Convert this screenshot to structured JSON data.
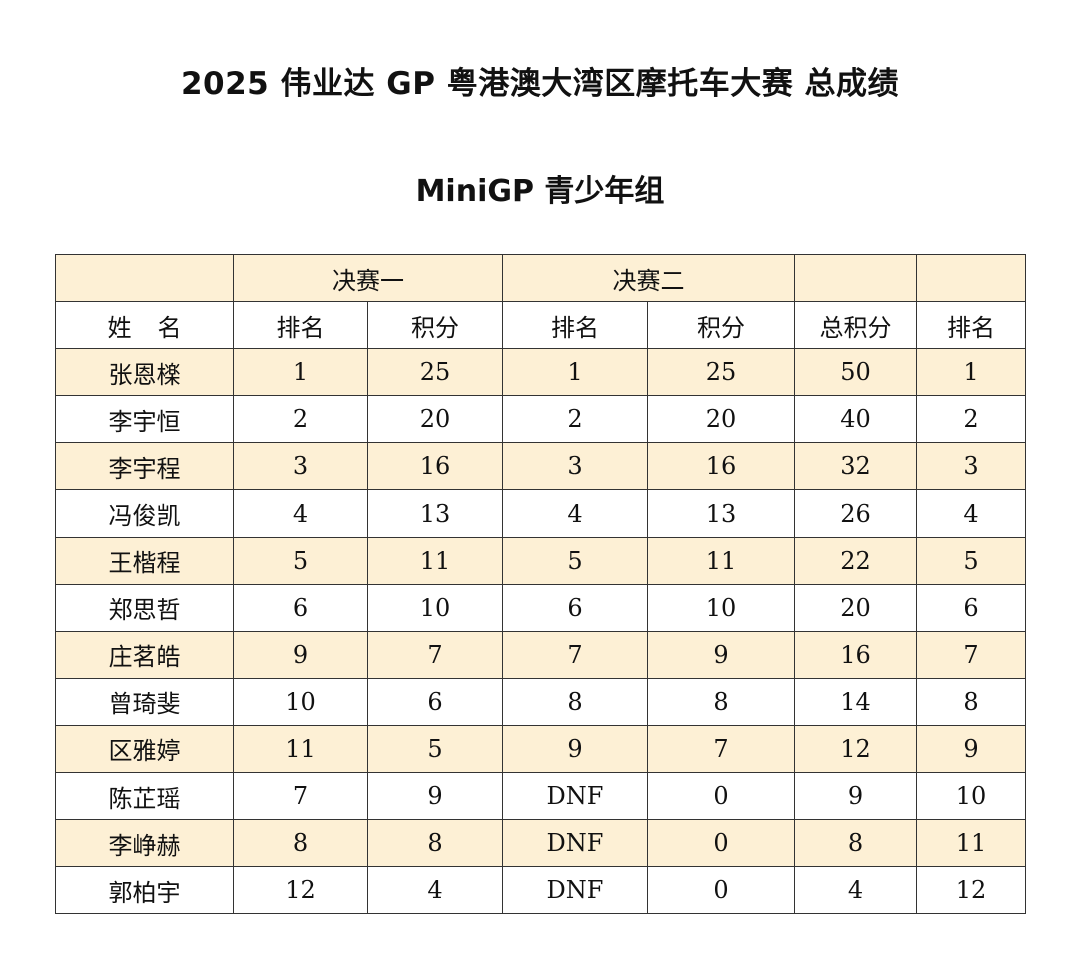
{
  "title": "2025  伟业达 GP 粤港澳大湾区摩托车大赛  总成绩",
  "subtitle": "MiniGP  青少年组",
  "colors": {
    "header_fill": "#fdf0d5",
    "row_fill": "#fdf0d5",
    "border": "#333333"
  },
  "table": {
    "group_headers": {
      "blank1": "",
      "final1": "决赛一",
      "final2": "决赛二",
      "blank2": "",
      "blank3": ""
    },
    "columns": {
      "name": "姓名",
      "f1_rank": "排名",
      "f1_points": "积分",
      "f2_rank": "排名",
      "f2_points": "积分",
      "total": "总积分",
      "rank": "排名"
    },
    "rows": [
      {
        "name": "张恩檪",
        "f1_rank": "1",
        "f1_points": "25",
        "f2_rank": "1",
        "f2_points": "25",
        "total": "50",
        "rank": "1"
      },
      {
        "name": "李宇恒",
        "f1_rank": "2",
        "f1_points": "20",
        "f2_rank": "2",
        "f2_points": "20",
        "total": "40",
        "rank": "2"
      },
      {
        "name": "李宇程",
        "f1_rank": "3",
        "f1_points": "16",
        "f2_rank": "3",
        "f2_points": "16",
        "total": "32",
        "rank": "3"
      },
      {
        "name": "冯俊凯",
        "f1_rank": "4",
        "f1_points": "13",
        "f2_rank": "4",
        "f2_points": "13",
        "total": "26",
        "rank": "4"
      },
      {
        "name": "王楷程",
        "f1_rank": "5",
        "f1_points": "11",
        "f2_rank": "5",
        "f2_points": "11",
        "total": "22",
        "rank": "5"
      },
      {
        "name": "郑思哲",
        "f1_rank": "6",
        "f1_points": "10",
        "f2_rank": "6",
        "f2_points": "10",
        "total": "20",
        "rank": "6"
      },
      {
        "name": "庄茗皓",
        "f1_rank": "9",
        "f1_points": "7",
        "f2_rank": "7",
        "f2_points": "9",
        "total": "16",
        "rank": "7"
      },
      {
        "name": "曾琦斐",
        "f1_rank": "10",
        "f1_points": "6",
        "f2_rank": "8",
        "f2_points": "8",
        "total": "14",
        "rank": "8"
      },
      {
        "name": "区雅婷",
        "f1_rank": "11",
        "f1_points": "5",
        "f2_rank": "9",
        "f2_points": "7",
        "total": "12",
        "rank": "9"
      },
      {
        "name": "陈芷瑶",
        "f1_rank": "7",
        "f1_points": "9",
        "f2_rank": "DNF",
        "f2_points": "0",
        "total": "9",
        "rank": "10"
      },
      {
        "name": "李峥赫",
        "f1_rank": "8",
        "f1_points": "8",
        "f2_rank": "DNF",
        "f2_points": "0",
        "total": "8",
        "rank": "11"
      },
      {
        "name": "郭柏宇",
        "f1_rank": "12",
        "f1_points": "4",
        "f2_rank": "DNF",
        "f2_points": "0",
        "total": "4",
        "rank": "12"
      }
    ]
  }
}
